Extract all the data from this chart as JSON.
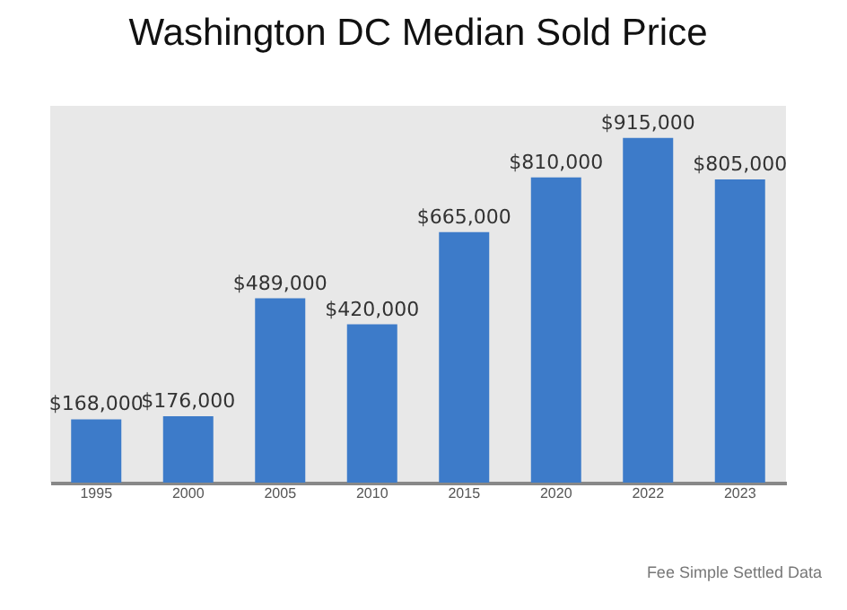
{
  "chart_data": {
    "type": "bar",
    "title": "Washington DC Median Sold Price",
    "categories": [
      "1995",
      "2000",
      "2005",
      "2010",
      "2015",
      "2020",
      "2022",
      "2023"
    ],
    "values": [
      168000,
      176000,
      489000,
      420000,
      665000,
      810000,
      915000,
      805000
    ],
    "value_labels": [
      "$168,000",
      "$176,000",
      "$489,000",
      "$420,000",
      "$665,000",
      "$810,000",
      "$915,000",
      "$805,000"
    ],
    "color": "#3d7bc9",
    "annotations": [
      "Fee Simple Settled Data"
    ]
  }
}
